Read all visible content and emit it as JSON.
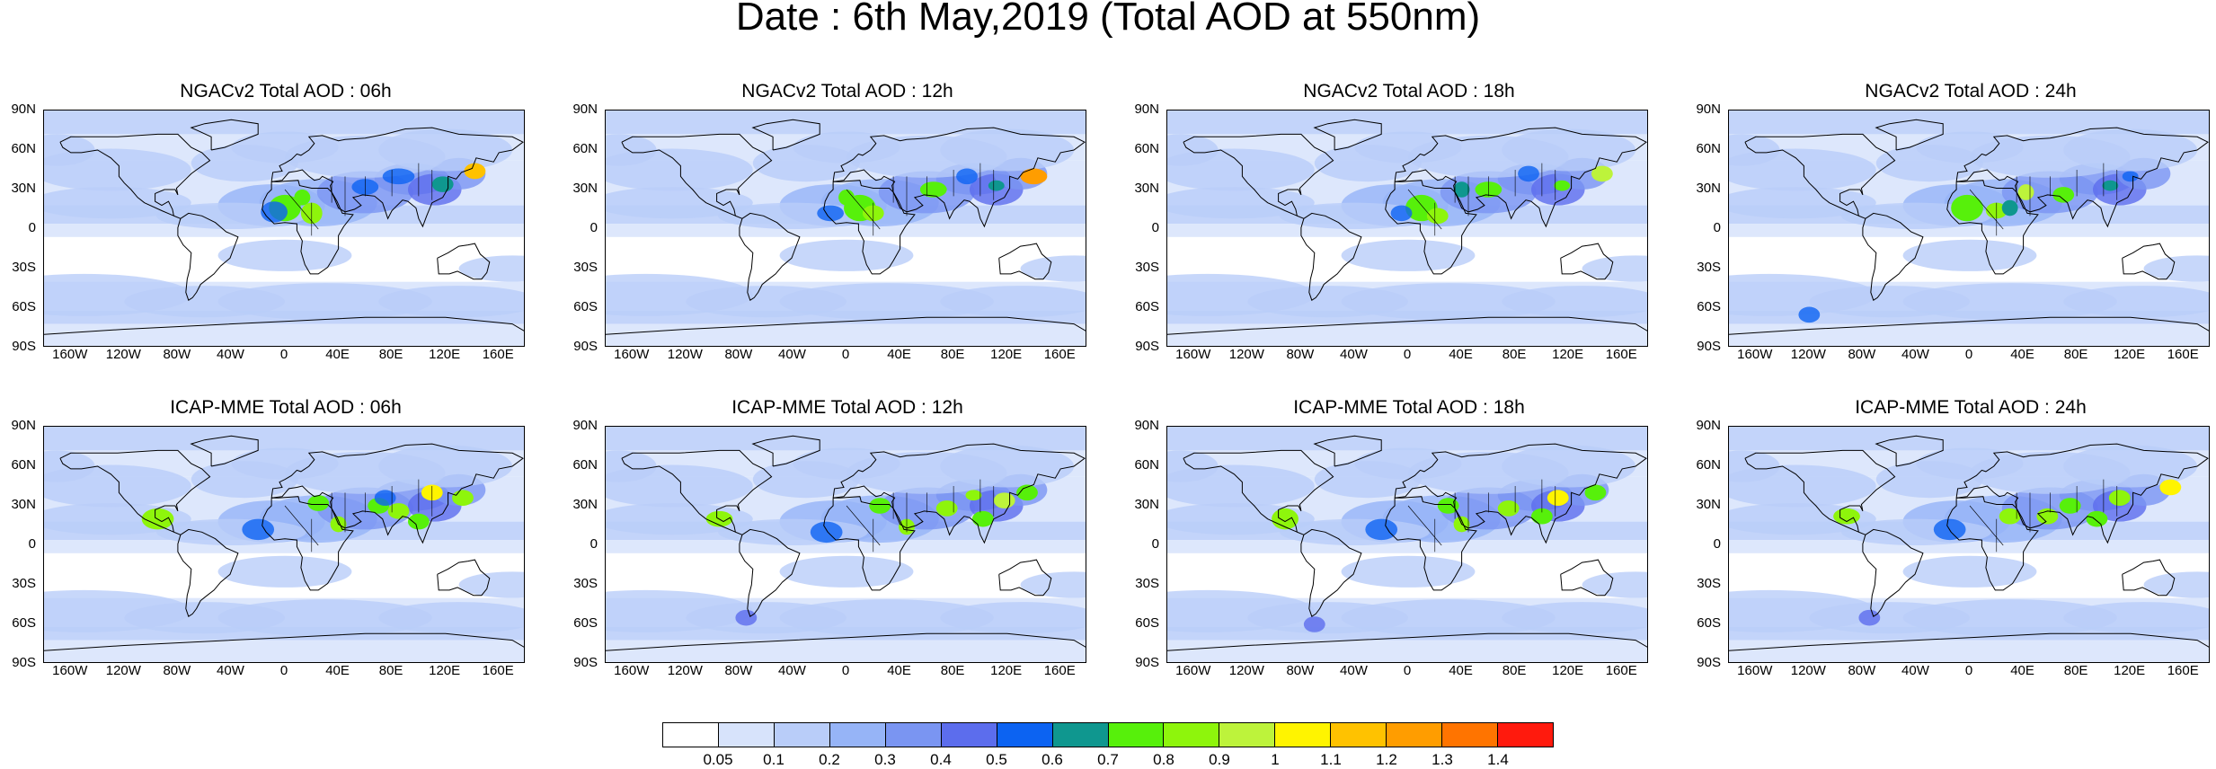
{
  "title": "Date : 6th May,2019 (Total AOD at 550nm)",
  "panels": [
    {
      "title": "NGACv2 Total AOD : 06h",
      "model": "NGACv2",
      "hour": "06h"
    },
    {
      "title": "NGACv2 Total AOD : 12h",
      "model": "NGACv2",
      "hour": "12h"
    },
    {
      "title": "NGACv2 Total AOD : 18h",
      "model": "NGACv2",
      "hour": "18h"
    },
    {
      "title": "NGACv2 Total AOD : 24h",
      "model": "NGACv2",
      "hour": "24h"
    },
    {
      "title": "ICAP-MME Total AOD : 06h",
      "model": "ICAP-MME",
      "hour": "06h"
    },
    {
      "title": "ICAP-MME Total AOD : 12h",
      "model": "ICAP-MME",
      "hour": "12h"
    },
    {
      "title": "ICAP-MME Total AOD : 18h",
      "model": "ICAP-MME",
      "hour": "18h"
    },
    {
      "title": "ICAP-MME Total AOD : 24h",
      "model": "ICAP-MME",
      "hour": "24h"
    }
  ],
  "lat_labels": [
    "90N",
    "60N",
    "30N",
    "0",
    "30S",
    "60S",
    "90S"
  ],
  "lon_labels": [
    "160W",
    "120W",
    "80W",
    "40W",
    "0",
    "40E",
    "80E",
    "120E",
    "160E"
  ],
  "colorbar": {
    "labels": [
      "0.05",
      "0.1",
      "0.2",
      "0.3",
      "0.4",
      "0.5",
      "0.6",
      "0.7",
      "0.8",
      "0.9",
      "1",
      "1.1",
      "1.2",
      "1.3",
      "1.4"
    ],
    "colors": [
      "#ffffff",
      "#d7e3fb",
      "#b9cdf9",
      "#96b4f7",
      "#7a95f2",
      "#5c6ded",
      "#0c63f2",
      "#0f978f",
      "#57f00b",
      "#8ef50c",
      "#bdf33b",
      "#fff400",
      "#ffc200",
      "#ff9d00",
      "#ff7400",
      "#ff1a0d"
    ]
  }
}
